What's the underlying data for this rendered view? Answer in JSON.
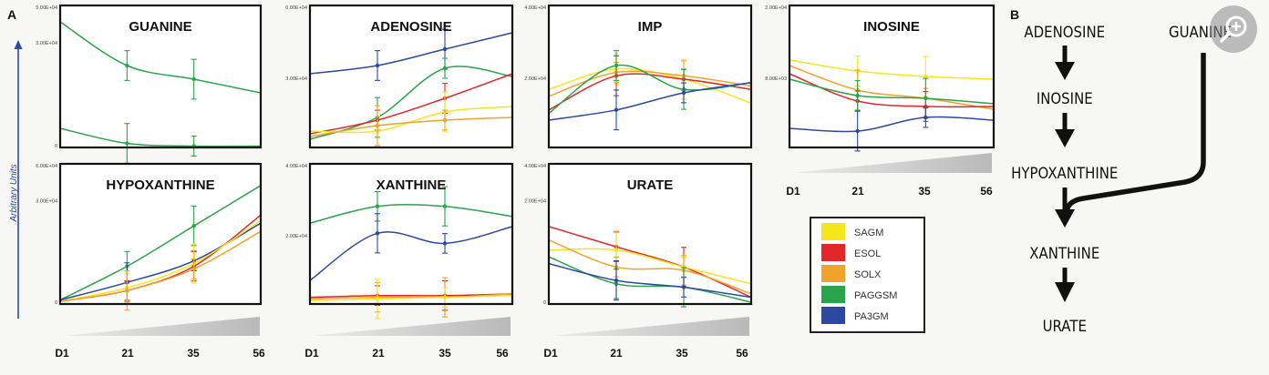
{
  "figure": {
    "panel_a_letter": "A",
    "panel_b_letter": "B",
    "y_axis_title": "Arbitrary Units"
  },
  "chart_data": [
    {
      "type": "line",
      "title": "GUANINE",
      "x": [
        "D1",
        "21",
        "35",
        "56"
      ],
      "y_ticks": [
        "5.00E+04",
        "3.00E+04",
        "0"
      ],
      "ylim": [
        0,
        5
      ],
      "series": [
        {
          "name": "PAGGSM",
          "values": [
            4.6,
            3.0,
            2.5,
            2.0
          ]
        },
        {
          "name": "PAGGSM",
          "values": [
            0.7,
            0.15,
            0.05,
            0.05
          ]
        }
      ]
    },
    {
      "type": "line",
      "title": "ADENOSINE",
      "x": [
        "D1",
        "21",
        "35",
        "56"
      ],
      "y_ticks": [
        "6.00E+04",
        "3.00E+04"
      ],
      "ylim": [
        0,
        5
      ],
      "series": [
        {
          "name": "PA3GM",
          "values": [
            2.7,
            3.0,
            3.6,
            4.2
          ]
        },
        {
          "name": "PAGGSM",
          "values": [
            0.3,
            1.1,
            2.9,
            2.6
          ]
        },
        {
          "name": "ESOL",
          "values": [
            0.5,
            1.0,
            1.8,
            2.7
          ]
        },
        {
          "name": "SAGM",
          "values": [
            0.6,
            0.6,
            1.3,
            1.5
          ]
        },
        {
          "name": "SOLX",
          "values": [
            0.4,
            0.8,
            1.0,
            1.1
          ]
        }
      ]
    },
    {
      "type": "line",
      "title": "IMP",
      "x": [
        "D1",
        "21",
        "35",
        "56"
      ],
      "y_ticks": [
        "4.00E+04",
        "2.00E+04"
      ],
      "ylim": [
        0,
        4
      ],
      "series": [
        {
          "name": "SAGM",
          "values": [
            1.7,
            2.3,
            2.0,
            1.3
          ]
        },
        {
          "name": "ESOL",
          "values": [
            1.1,
            2.1,
            2.0,
            1.7
          ]
        },
        {
          "name": "SOLX",
          "values": [
            1.5,
            2.2,
            2.1,
            1.8
          ]
        },
        {
          "name": "PAGGSM",
          "values": [
            1.0,
            2.4,
            1.7,
            1.9
          ]
        },
        {
          "name": "PA3GM",
          "values": [
            0.8,
            1.1,
            1.6,
            1.9
          ]
        }
      ]
    },
    {
      "type": "line",
      "title": "INOSINE",
      "x": [
        "D1",
        "21",
        "35",
        "56"
      ],
      "y_ticks": [
        "2.00E+04",
        "8.00E+03"
      ],
      "ylim": [
        0,
        5
      ],
      "series": [
        {
          "name": "SAGM",
          "values": [
            3.2,
            2.8,
            2.6,
            2.5
          ]
        },
        {
          "name": "SOLX",
          "values": [
            3.0,
            2.1,
            1.8,
            1.4
          ]
        },
        {
          "name": "ESOL",
          "values": [
            2.7,
            1.7,
            1.5,
            1.5
          ]
        },
        {
          "name": "PAGGSM",
          "values": [
            2.5,
            1.9,
            1.8,
            1.6
          ]
        },
        {
          "name": "PA3GM",
          "values": [
            0.7,
            0.6,
            1.1,
            1.0
          ]
        }
      ]
    },
    {
      "type": "line",
      "title": "HYPOXANTHINE",
      "x": [
        "D1",
        "21",
        "35",
        "56"
      ],
      "y_ticks": [
        "6.00E+04",
        "3.00E+04",
        "0"
      ],
      "ylim": [
        0,
        5
      ],
      "series": [
        {
          "name": "PAGGSM",
          "values": [
            0.15,
            1.4,
            2.9,
            4.4
          ]
        },
        {
          "name": "PA3GM",
          "values": [
            0.15,
            0.8,
            1.6,
            3.0
          ]
        },
        {
          "name": "ESOL",
          "values": [
            0.1,
            0.5,
            1.4,
            3.3
          ]
        },
        {
          "name": "SAGM",
          "values": [
            0.1,
            0.6,
            1.5,
            3.1
          ]
        },
        {
          "name": "SOLX",
          "values": [
            0.1,
            0.5,
            1.3,
            2.7
          ]
        }
      ]
    },
    {
      "type": "line",
      "title": "XANTHINE",
      "x": [
        "D1",
        "21",
        "35",
        "56"
      ],
      "y_ticks": [
        "4.00E+04",
        "2.00E+04"
      ],
      "ylim": [
        0,
        4
      ],
      "series": [
        {
          "name": "PAGGSM",
          "values": [
            2.4,
            2.9,
            2.9,
            2.6
          ]
        },
        {
          "name": "PA3GM",
          "values": [
            0.7,
            2.1,
            1.8,
            2.3
          ]
        },
        {
          "name": "ESOL",
          "values": [
            0.2,
            0.25,
            0.25,
            0.3
          ]
        },
        {
          "name": "SOLX",
          "values": [
            0.15,
            0.2,
            0.2,
            0.3
          ]
        },
        {
          "name": "SAGM",
          "values": [
            0.1,
            0.15,
            0.2,
            0.25
          ]
        }
      ]
    },
    {
      "type": "line",
      "title": "URATE",
      "x": [
        "D1",
        "21",
        "35",
        "56"
      ],
      "y_ticks": [
        "4.00E+04",
        "2.00E+04",
        "0"
      ],
      "ylim": [
        0,
        4
      ],
      "series": [
        {
          "name": "ESOL",
          "values": [
            2.3,
            1.7,
            1.1,
            0.2
          ]
        },
        {
          "name": "SAGM",
          "values": [
            1.6,
            1.6,
            1.1,
            0.6
          ]
        },
        {
          "name": "SOLX",
          "values": [
            1.9,
            1.1,
            1.0,
            0.3
          ]
        },
        {
          "name": "PAGGSM",
          "values": [
            1.4,
            0.6,
            0.5,
            0.05
          ]
        },
        {
          "name": "PA3GM",
          "values": [
            1.2,
            0.7,
            0.5,
            0.2
          ]
        }
      ]
    }
  ],
  "legend": {
    "entries": [
      {
        "name": "SAGM",
        "color": "#f5e61c"
      },
      {
        "name": "ESOL",
        "color": "#e2262a"
      },
      {
        "name": "SOLX",
        "color": "#f0a32a"
      },
      {
        "name": "PAGGSM",
        "color": "#2aa44a"
      },
      {
        "name": "PA3GM",
        "color": "#2b49a2"
      }
    ]
  },
  "pathway": {
    "nodes": [
      "ADENOSINE",
      "INOSINE",
      "HYPOXANTHINE",
      "XANTHINE",
      "URATE"
    ],
    "side_node": "GUANINE"
  },
  "colors": {
    "axis_arrow": "#2b49a2",
    "ramp": "#bdbdbd"
  }
}
